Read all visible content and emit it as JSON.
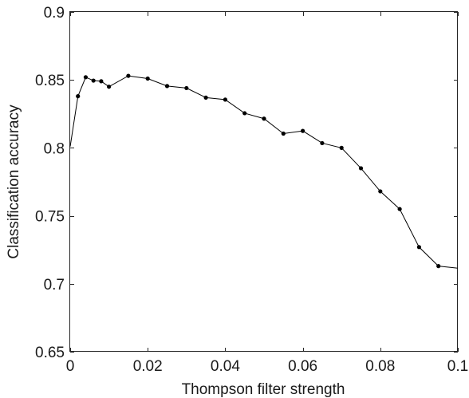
{
  "chart_data": {
    "type": "line",
    "title": "",
    "xlabel": "Thompson filter strength",
    "ylabel": "Classification accuracy",
    "xlim": [
      0,
      0.1
    ],
    "ylim": [
      0.65,
      0.9
    ],
    "xticks": [
      0,
      0.02,
      0.04,
      0.06,
      0.08,
      0.1
    ],
    "xtick_labels": [
      "0",
      "0.02",
      "0.04",
      "0.06",
      "0.08",
      "0.1"
    ],
    "yticks": [
      0.65,
      0.7,
      0.75,
      0.8,
      0.85,
      0.9
    ],
    "ytick_labels": [
      "0.65",
      "0.7",
      "0.75",
      "0.8",
      "0.85",
      "0.9"
    ],
    "grid": false,
    "series": [
      {
        "color": "#000000",
        "line": {
          "x": [
            0,
            0.002,
            0.004,
            0.006,
            0.008,
            0.01,
            0.015,
            0.02,
            0.025,
            0.03,
            0.035,
            0.04,
            0.045,
            0.05,
            0.055,
            0.06,
            0.065,
            0.07,
            0.075,
            0.08,
            0.085,
            0.09,
            0.095,
            0.1
          ],
          "y": [
            0.801,
            0.838,
            0.852,
            0.8495,
            0.849,
            0.845,
            0.853,
            0.851,
            0.8455,
            0.844,
            0.837,
            0.8355,
            0.8255,
            0.8215,
            0.8105,
            0.8125,
            0.8035,
            0.8,
            0.785,
            0.768,
            0.755,
            0.727,
            0.713,
            0.7115
          ]
        },
        "markers": {
          "x": [
            0.002,
            0.004,
            0.006,
            0.008,
            0.01,
            0.015,
            0.02,
            0.025,
            0.03,
            0.035,
            0.04,
            0.045,
            0.05,
            0.055,
            0.06,
            0.065,
            0.07,
            0.075,
            0.08,
            0.085,
            0.09,
            0.095
          ],
          "y": [
            0.838,
            0.852,
            0.8495,
            0.849,
            0.845,
            0.853,
            0.851,
            0.8455,
            0.844,
            0.837,
            0.8355,
            0.8255,
            0.8215,
            0.8105,
            0.8125,
            0.8035,
            0.8,
            0.785,
            0.768,
            0.755,
            0.727,
            0.713
          ]
        }
      }
    ]
  }
}
